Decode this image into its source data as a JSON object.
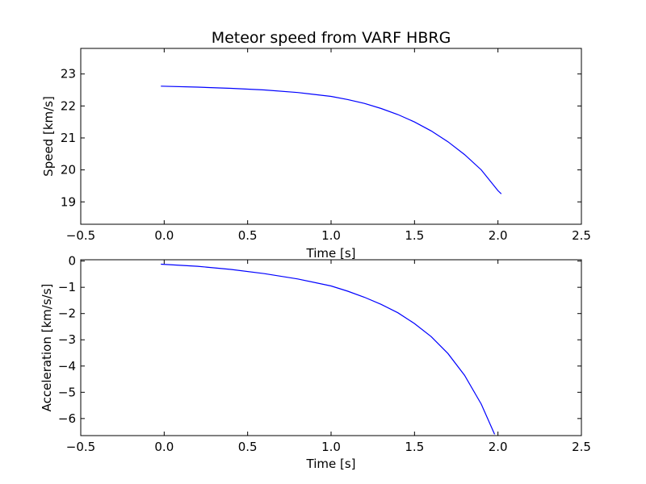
{
  "chart_data": [
    {
      "type": "line",
      "title": "Meteor speed from  VARF HBRG",
      "xlabel": "Time [s]",
      "ylabel": "Speed [km/s]",
      "xlim": [
        -0.5,
        2.5
      ],
      "ylim": [
        18.3,
        23.8
      ],
      "xticks": [
        -0.5,
        0.0,
        0.5,
        1.0,
        1.5,
        2.0,
        2.5
      ],
      "xtick_labels": [
        "−0.5",
        "0.0",
        "0.5",
        "1.0",
        "1.5",
        "2.0",
        "2.5"
      ],
      "yticks": [
        19,
        20,
        21,
        22,
        23
      ],
      "ytick_labels": [
        "19",
        "20",
        "21",
        "22",
        "23"
      ],
      "grid": false,
      "color": "#0000ff",
      "series": [
        {
          "x": [
            -0.02,
            0.2,
            0.4,
            0.6,
            0.8,
            1.0,
            1.1,
            1.2,
            1.3,
            1.4,
            1.5,
            1.6,
            1.7,
            1.8,
            1.9,
            2.0,
            2.02
          ],
          "y": [
            22.62,
            22.59,
            22.55,
            22.5,
            22.42,
            22.3,
            22.2,
            22.08,
            21.92,
            21.73,
            21.5,
            21.22,
            20.88,
            20.48,
            20.0,
            19.35,
            19.25
          ]
        }
      ]
    },
    {
      "type": "line",
      "title": "",
      "xlabel": "Time [s]",
      "ylabel": "Acceleration [km/s/s]",
      "xlim": [
        -0.5,
        2.5
      ],
      "ylim": [
        -6.65,
        0.05
      ],
      "xticks": [
        -0.5,
        0.0,
        0.5,
        1.0,
        1.5,
        2.0,
        2.5
      ],
      "xtick_labels": [
        "−0.5",
        "0.0",
        "0.5",
        "1.0",
        "1.5",
        "2.0",
        "2.5"
      ],
      "yticks": [
        0,
        -1,
        -2,
        -3,
        -4,
        -5,
        -6
      ],
      "ytick_labels": [
        "0",
        "−1",
        "−2",
        "−3",
        "−4",
        "−5",
        "−6"
      ],
      "grid": false,
      "color": "#0000ff",
      "series": [
        {
          "x": [
            -0.02,
            0.2,
            0.4,
            0.6,
            0.8,
            1.0,
            1.1,
            1.2,
            1.3,
            1.4,
            1.5,
            1.6,
            1.7,
            1.8,
            1.9,
            1.98
          ],
          "y": [
            -0.12,
            -0.2,
            -0.32,
            -0.48,
            -0.68,
            -0.95,
            -1.15,
            -1.38,
            -1.65,
            -1.97,
            -2.38,
            -2.88,
            -3.52,
            -4.35,
            -5.45,
            -6.6
          ]
        }
      ]
    }
  ]
}
